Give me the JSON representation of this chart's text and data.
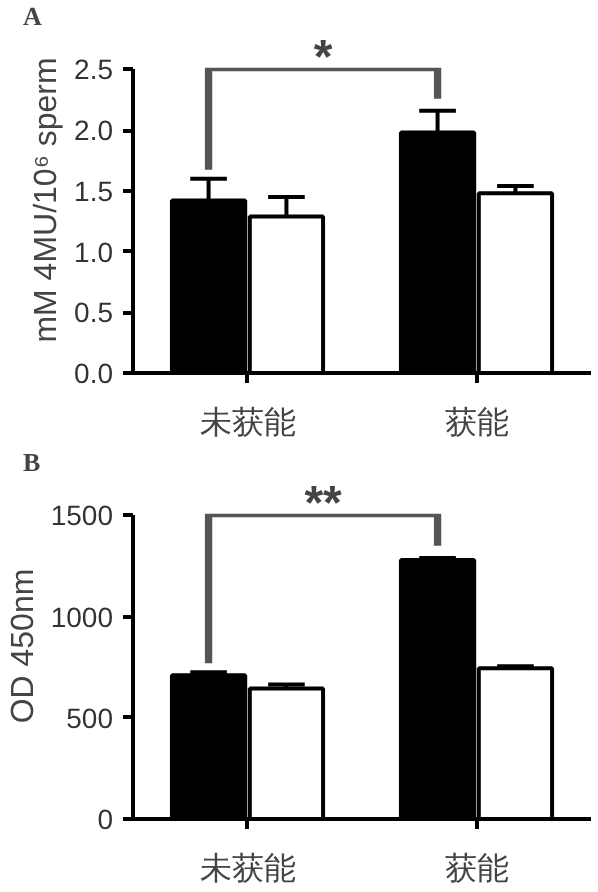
{
  "chart_data": [
    {
      "type": "bar",
      "title": "A",
      "ylabel": "mM 4MU/10⁶ sperm",
      "categories": [
        "未获能",
        "获能"
      ],
      "series": [
        {
          "color": "#000000",
          "values": [
            1.42,
            1.98
          ],
          "errors": [
            [
              1.42,
              1.6
            ],
            [
              1.98,
              2.16
            ]
          ]
        },
        {
          "color": "#ffffff",
          "values": [
            1.29,
            1.48
          ],
          "errors": [
            [
              1.29,
              1.45
            ],
            [
              1.48,
              1.54
            ]
          ]
        }
      ],
      "ylim": [
        0,
        2.5
      ],
      "yticks": [
        {
          "value": 0,
          "label": "0.0"
        },
        0.5,
        {
          "value": 1,
          "label": "1.0"
        },
        1.5,
        {
          "value": 2,
          "label": "2.0"
        },
        2.5
      ],
      "annotations": [
        "*"
      ],
      "grid": false
    },
    {
      "type": "bar",
      "title": "B",
      "ylabel": "OD 450nm",
      "categories": [
        "未获能",
        "获能"
      ],
      "series": [
        {
          "color": "#000000",
          "values": [
            710,
            1280
          ],
          "errors": [
            [
              710,
              725
            ],
            [
              1280,
              1290
            ]
          ]
        },
        {
          "color": "#ffffff",
          "values": [
            645,
            745
          ],
          "errors": [
            [
              645,
              665
            ],
            [
              745,
              755
            ]
          ]
        }
      ],
      "ylim": [
        0,
        1500
      ],
      "yticks": [
        0,
        500,
        1000,
        1500
      ],
      "annotations": [
        "**"
      ],
      "grid": false
    }
  ]
}
